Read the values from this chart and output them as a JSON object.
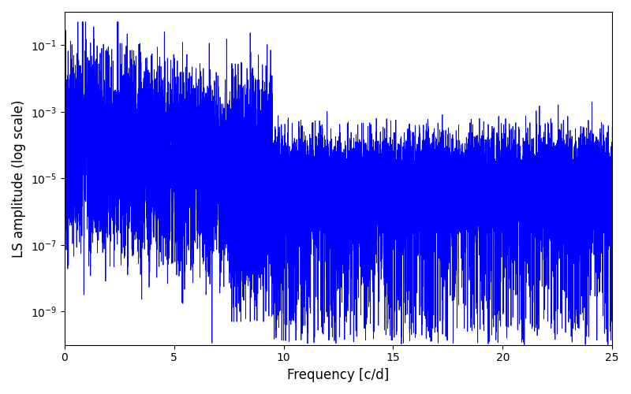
{
  "title": "",
  "xlabel": "Frequency [c/d]",
  "ylabel": "LS amplitude (log scale)",
  "xlim": [
    0,
    25
  ],
  "ylim": [
    1e-10,
    1.0
  ],
  "line_color": "#0000ff",
  "line_width": 0.6,
  "yscale": "log",
  "figsize": [
    8.0,
    5.0
  ],
  "dpi": 100,
  "yticks": [
    1e-09,
    1e-07,
    1e-05,
    0.001,
    0.1
  ],
  "xticks": [
    0,
    5,
    10,
    15,
    20,
    25
  ],
  "seed": 99,
  "n_points": 25000,
  "freq_max": 25.0
}
